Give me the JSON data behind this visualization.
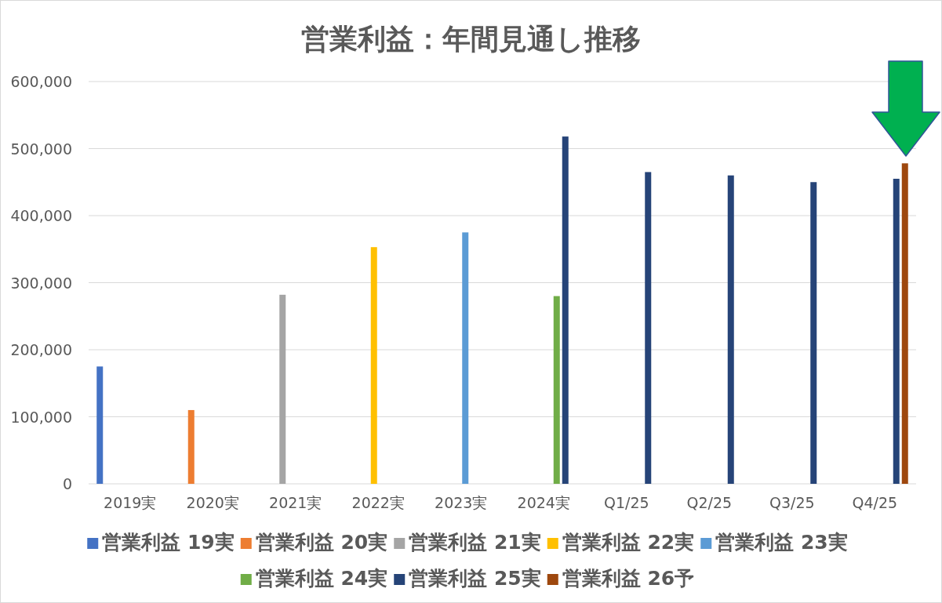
{
  "chart_data": {
    "type": "bar",
    "title": "営業利益：年間見通し推移",
    "categories": [
      "2019実",
      "2020実",
      "2021実",
      "2022実",
      "2023実",
      "2024実",
      "Q1/25",
      "Q2/25",
      "Q3/25",
      "Q4/25"
    ],
    "series": [
      {
        "name": "営業利益 19実",
        "color": "#4472c4",
        "values": [
          175000,
          null,
          null,
          null,
          null,
          null,
          null,
          null,
          null,
          null
        ]
      },
      {
        "name": "営業利益 20実",
        "color": "#ed7d31",
        "values": [
          null,
          110000,
          null,
          null,
          null,
          null,
          null,
          null,
          null,
          null
        ]
      },
      {
        "name": "営業利益 21実",
        "color": "#a5a5a5",
        "values": [
          null,
          null,
          282000,
          null,
          null,
          null,
          null,
          null,
          null,
          null
        ]
      },
      {
        "name": "営業利益 22実",
        "color": "#ffc000",
        "values": [
          null,
          null,
          null,
          353000,
          null,
          null,
          null,
          null,
          null,
          null
        ]
      },
      {
        "name": "営業利益 23実",
        "color": "#5b9bd5",
        "values": [
          null,
          null,
          null,
          null,
          375000,
          null,
          null,
          null,
          null,
          null
        ]
      },
      {
        "name": "営業利益 24実",
        "color": "#70ad47",
        "values": [
          null,
          null,
          null,
          null,
          null,
          280000,
          null,
          null,
          null,
          null
        ]
      },
      {
        "name": "営業利益 25実",
        "color": "#264478",
        "values": [
          null,
          null,
          null,
          null,
          null,
          518000,
          465000,
          460000,
          450000,
          455000
        ]
      },
      {
        "name": "営業利益 26予",
        "color": "#9e480e",
        "values": [
          null,
          null,
          null,
          null,
          null,
          null,
          null,
          null,
          null,
          478000
        ]
      }
    ],
    "ylim": [
      0,
      600000
    ],
    "yticks": [
      0,
      {
        "value": 100000,
        "label": "100,000"
      },
      {
        "value": 200000,
        "label": "200,000"
      },
      {
        "value": 300000,
        "label": "300,000"
      },
      {
        "value": 400000,
        "label": "400,000"
      },
      {
        "value": 500000,
        "label": "500,000"
      },
      {
        "value": 600000,
        "label": "600,000"
      }
    ],
    "grid": "y",
    "legend": "bottom"
  }
}
